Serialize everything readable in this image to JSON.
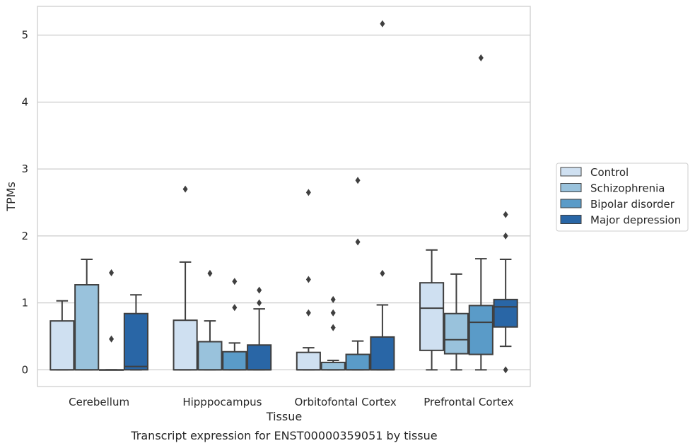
{
  "chart_data": {
    "type": "box",
    "caption": "Transcript expression for ENST00000359051 by tissue",
    "xlabel": "Tissue",
    "ylabel": "TPMs",
    "ylim": [
      -0.25,
      5.43
    ],
    "yticks": [
      0,
      1,
      2,
      3,
      4,
      5
    ],
    "grid": true,
    "legend_position": "right",
    "categories": [
      "Cerebellum",
      "Hipppocampus",
      "Orbitofontal Cortex",
      "Prefrontal Cortex"
    ],
    "series": [
      {
        "name": "Control",
        "color": "#cfe0f1",
        "boxes": [
          {
            "q1": 0,
            "median": 0,
            "q3": 0.73,
            "whislo": 0,
            "whishi": 1.03,
            "fliers": []
          },
          {
            "q1": 0,
            "median": 0,
            "q3": 0.74,
            "whislo": 0,
            "whishi": 1.61,
            "fliers": [
              2.7
            ]
          },
          {
            "q1": 0,
            "median": 0,
            "q3": 0.26,
            "whislo": 0,
            "whishi": 0.33,
            "fliers": [
              0.85,
              1.35,
              2.65
            ]
          },
          {
            "q1": 0.29,
            "median": 0.92,
            "q3": 1.3,
            "whislo": 0,
            "whishi": 1.79,
            "fliers": []
          }
        ]
      },
      {
        "name": "Schizophrenia",
        "color": "#99c2dc",
        "boxes": [
          {
            "q1": 0,
            "median": 0,
            "q3": 1.27,
            "whislo": 0,
            "whishi": 1.65,
            "fliers": []
          },
          {
            "q1": 0,
            "median": 0,
            "q3": 0.42,
            "whislo": 0,
            "whishi": 0.73,
            "fliers": [
              1.44
            ]
          },
          {
            "q1": 0,
            "median": 0,
            "q3": 0.11,
            "whislo": 0,
            "whishi": 0.14,
            "fliers": [
              0.63,
              0.85,
              1.05
            ]
          },
          {
            "q1": 0.24,
            "median": 0.45,
            "q3": 0.84,
            "whislo": 0,
            "whishi": 1.43,
            "fliers": []
          }
        ]
      },
      {
        "name": "Bipolar disorder",
        "color": "#5a9bc8",
        "boxes": [
          {
            "q1": 0,
            "median": 0,
            "q3": 0,
            "whislo": 0,
            "whishi": 0,
            "fliers": [
              0.46,
              1.45
            ]
          },
          {
            "q1": 0,
            "median": 0,
            "q3": 0.27,
            "whislo": 0,
            "whishi": 0.4,
            "fliers": [
              0.93,
              1.32
            ]
          },
          {
            "q1": 0,
            "median": 0,
            "q3": 0.23,
            "whislo": 0,
            "whishi": 0.43,
            "fliers": [
              1.91,
              2.83
            ]
          },
          {
            "q1": 0.23,
            "median": 0.71,
            "q3": 0.96,
            "whislo": 0,
            "whishi": 1.66,
            "fliers": [
              4.66
            ]
          }
        ]
      },
      {
        "name": "Major depression",
        "color": "#2966a6",
        "boxes": [
          {
            "q1": 0,
            "median": 0.05,
            "q3": 0.84,
            "whislo": 0,
            "whishi": 1.12,
            "fliers": []
          },
          {
            "q1": 0,
            "median": 0,
            "q3": 0.37,
            "whislo": 0,
            "whishi": 0.91,
            "fliers": [
              1.0,
              1.19
            ]
          },
          {
            "q1": 0,
            "median": 0,
            "q3": 0.49,
            "whislo": 0,
            "whishi": 0.97,
            "fliers": [
              1.44,
              5.17
            ]
          },
          {
            "q1": 0.64,
            "median": 0.94,
            "q3": 1.05,
            "whislo": 0.35,
            "whishi": 1.65,
            "fliers": [
              0,
              2.0,
              2.32
            ]
          }
        ]
      }
    ]
  }
}
